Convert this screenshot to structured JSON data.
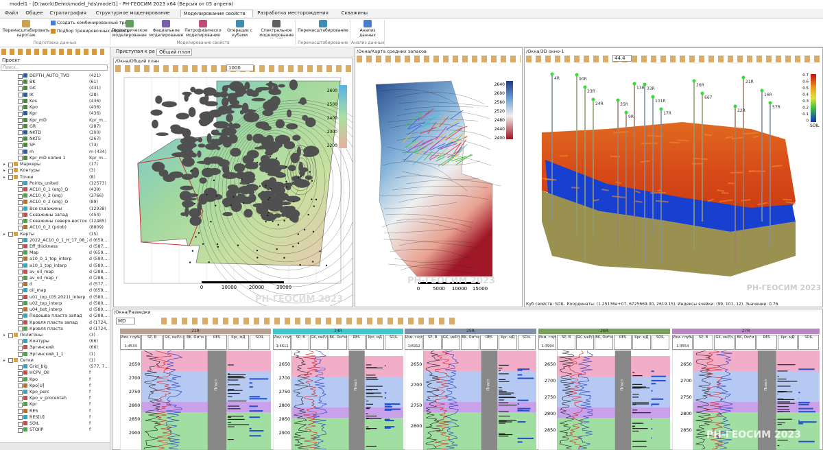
{
  "window": {
    "title": "model1 - [D:\\work\\Demo\\model_hds\\model1] - РН-ГЕОСИМ 2023 x64 (Версия от 05 апреля)"
  },
  "menu": [
    "Файл",
    "Общее",
    "Стратиграфия",
    "Структурное моделирование",
    "Моделирование свойств",
    "Разработка месторождения",
    "Скважины"
  ],
  "ribbon": [
    {
      "label": "Подготовка данных",
      "items": [
        "Перемасштабировать каротаж",
        "Создать комбинированный тренд",
        "Подбор тренировочных образов"
      ]
    },
    {
      "label": "Моделирование свойств",
      "items": [
        "Геометрическое моделирование",
        "Фациальное моделирование",
        "Петрофизическое моделирование",
        "Операции с кубами",
        "Спектральное моделирование (ReST)"
      ]
    },
    {
      "label": "Перемасштабирование",
      "items": [
        "Перемасштабирование"
      ]
    },
    {
      "label": "Анализ данных",
      "items": [
        "Анализ данных"
      ]
    }
  ],
  "project": {
    "title": "Проект",
    "search": "Поиск...",
    "logs": [
      {
        "name": "DEPTH_AUTO_TVD",
        "count": "(421)"
      },
      {
        "name": "BK",
        "count": "(61)"
      },
      {
        "name": "GK",
        "count": "(431)"
      },
      {
        "name": "IK",
        "count": "(28)"
      },
      {
        "name": "Kos",
        "count": "(436)"
      },
      {
        "name": "Kpo",
        "count": "(436)"
      },
      {
        "name": "Kpr",
        "count": "(436)"
      },
      {
        "name": "Kpr_mD",
        "count": "Kpr_m..."
      },
      {
        "name": "GR",
        "count": "(287)"
      },
      {
        "name": "NKTD",
        "count": "(300)"
      },
      {
        "name": "NKTS",
        "count": "(267)"
      },
      {
        "name": "SP",
        "count": "(73)"
      },
      {
        "name": "m",
        "count": "m (434)"
      },
      {
        "name": "Kpr_mD копия 1",
        "count": "Kpr_m..."
      }
    ],
    "tree": [
      {
        "name": "Маркеры",
        "count": "(17)"
      },
      {
        "name": "Контуры",
        "count": "(3)"
      },
      {
        "name": "Точки",
        "count": "(8)",
        "children": [
          {
            "name": "Points_united",
            "count": "(12573)"
          },
          {
            "name": "AC10_0_1 (erg)_O",
            "count": "(439)"
          },
          {
            "name": "AC10_0_2 (erg)",
            "count": "(3766)"
          },
          {
            "name": "AC10_0_2 (erg)_O",
            "count": "(89)"
          },
          {
            "name": "Все скважины",
            "count": "(12938)"
          },
          {
            "name": "Скважины запад",
            "count": "(454)"
          },
          {
            "name": "Скважины северо-восток",
            "count": "(12485)"
          },
          {
            "name": "AC10_0_2 (priob)",
            "count": "(8809)"
          }
        ]
      },
      {
        "name": "Карты",
        "count": "(15)",
        "children": [
          {
            "name": "2022_AC10_0_1_H_17_08_2022",
            "count": "d (659,..."
          },
          {
            "name": "Eff_thickness",
            "count": "d (587,..."
          },
          {
            "name": "Map",
            "count": "d (659,..."
          },
          {
            "name": "a10_0_1_top_interp",
            "count": "d (580,..."
          },
          {
            "name": "a10_1_top_interp",
            "count": "d (580,..."
          },
          {
            "name": "av_oil_map",
            "count": "d (288,..."
          },
          {
            "name": "av_oil_map_r",
            "count": "d (288,..."
          },
          {
            "name": "d",
            "count": "d (577,..."
          },
          {
            "name": "oil_map",
            "count": "d (659,..."
          },
          {
            "name": "u01_top_(05.2021)_interp",
            "count": "d (580,..."
          },
          {
            "name": "u02_top_interp",
            "count": "d (580,..."
          },
          {
            "name": "u04_bot_interp",
            "count": "d (580,..."
          },
          {
            "name": "Подошва пласта запад",
            "count": "d (288,..."
          },
          {
            "name": "Кровля пласта запад",
            "count": "d (1724,..."
          },
          {
            "name": "Кровля пласта",
            "count": "d (1724,..."
          }
        ]
      },
      {
        "name": "Полигоны",
        "count": "(3)",
        "children": [
          {
            "name": "Контуры",
            "count": "(66)"
          },
          {
            "name": "Эргинский",
            "count": "(66)"
          },
          {
            "name": "Эргинский_1_1",
            "count": "(1)"
          }
        ]
      },
      {
        "name": "Сетки",
        "count": "(1)",
        "children": [
          {
            "name": "Grid_big",
            "count": "(577, 7..."
          },
          {
            "name": "HCPV_Oil",
            "count": "f"
          },
          {
            "name": "Kpo",
            "count": "f"
          },
          {
            "name": "Kpo[U]",
            "count": "f"
          },
          {
            "name": "Kpo_perc",
            "count": "f"
          },
          {
            "name": "Kpo_v_procentah",
            "count": "f"
          },
          {
            "name": "Kpr",
            "count": "f"
          },
          {
            "name": "RES",
            "count": "f"
          },
          {
            "name": "RES[U]",
            "count": "f"
          },
          {
            "name": "SOIL",
            "count": "f"
          },
          {
            "name": "STOIIP",
            "count": "f"
          }
        ]
      }
    ]
  },
  "tabs": [
    "Приступая к работе",
    "Общий план"
  ],
  "plan": {
    "path": "/Окна/Общий план",
    "zoom": "1000",
    "colorbar": [
      "2600",
      "2500",
      "2400",
      "2300",
      "2200"
    ],
    "scale": [
      "0",
      "10000",
      "20000",
      "30000"
    ],
    "watermark": "РН-ГЕОСИМ 2023"
  },
  "reserves": {
    "path": "/Окна/Карта средних запасов",
    "colorbar": [
      "2640",
      "2600",
      "2560",
      "2520",
      "2480",
      "2440",
      "2400"
    ],
    "scale": [
      "0",
      "5000",
      "10000",
      "15000"
    ],
    "watermark": "РН-ГЕОСИМ 2023"
  },
  "view3d": {
    "path": "/Окна/3D окно-1",
    "zoom": "44.4",
    "colorbar": [
      "0.7",
      "0.6",
      "0.5",
      "0.4",
      "0.3",
      "0.2",
      "0.1",
      "0"
    ],
    "property": "SOIL",
    "wells": [
      "4R",
      "24R",
      "13R",
      "17R",
      "667",
      "21R",
      "57R",
      "23R",
      "9R",
      "101R",
      "26R",
      "22R",
      "16R",
      "90R",
      "35R",
      "33R"
    ],
    "status": "Куб свойств: SOIL. Координаты: (1.25136e+07, 6725669.00, 2619.15). Индексы ячейки: (99, 101, 12). Значение: 0.76",
    "watermark": "РН-ГЕОСИМ 2023"
  },
  "section": {
    "path": "/Окна/Разведки",
    "depth_type": "MD",
    "columns": [
      "Изм. глубина",
      "SP, В",
      "GK, мкР/ч",
      "BK, Ом*м",
      "RES",
      "Kpr, мД",
      "SOIL"
    ],
    "zone": "Пласт",
    "watermark": "РН-ГЕОСИМ 2023",
    "wells": [
      {
        "name": "21R",
        "scale": "1:4534",
        "depths": [
          "2650",
          "2700",
          "2750",
          "2800",
          "2850",
          "2900"
        ]
      },
      {
        "name": "24R",
        "scale": "1:4611",
        "depths": [
          "2650",
          "2700",
          "2750",
          "2800",
          "2850",
          "2900"
        ]
      },
      {
        "name": "25R",
        "scale": "1:6912",
        "depths": [
          "2650",
          "2700",
          "2750",
          "2800"
        ]
      },
      {
        "name": "26R",
        "scale": "1:3994",
        "depths": [
          "2650",
          "2700",
          "2750",
          "2800",
          "2850"
        ]
      },
      {
        "name": "27R",
        "scale": "1:3554",
        "depths": [
          "2650",
          "2700",
          "2750",
          "2800",
          "2850"
        ]
      }
    ]
  }
}
